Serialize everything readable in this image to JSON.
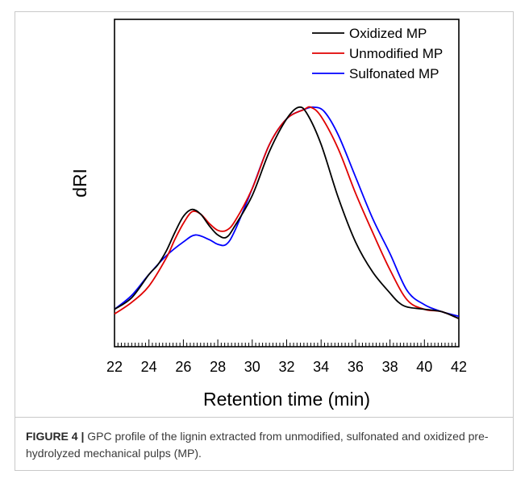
{
  "chart_data": {
    "type": "line",
    "title": "",
    "xlabel": "Retention time (min)",
    "ylabel": "dRI",
    "xlim": [
      22,
      42
    ],
    "xticks": [
      22,
      24,
      26,
      28,
      30,
      32,
      34,
      36,
      38,
      40,
      42
    ],
    "y_tick_labels_shown": false,
    "legend_position": "top-right",
    "series": [
      {
        "name": "Oxidized MP",
        "color": "#000000",
        "points": [
          [
            22,
            0.05
          ],
          [
            23,
            0.1
          ],
          [
            24,
            0.2
          ],
          [
            24.5,
            0.24
          ],
          [
            25,
            0.3
          ],
          [
            25.5,
            0.38
          ],
          [
            26,
            0.45
          ],
          [
            26.5,
            0.48
          ],
          [
            27,
            0.46
          ],
          [
            27.5,
            0.41
          ],
          [
            28,
            0.37
          ],
          [
            28.5,
            0.36
          ],
          [
            29,
            0.41
          ],
          [
            30,
            0.54
          ],
          [
            31,
            0.73
          ],
          [
            32,
            0.87
          ],
          [
            32.7,
            0.92
          ],
          [
            33.2,
            0.89
          ],
          [
            34,
            0.76
          ],
          [
            35,
            0.53
          ],
          [
            36,
            0.34
          ],
          [
            37,
            0.21
          ],
          [
            38,
            0.12
          ],
          [
            38.5,
            0.08
          ],
          [
            39,
            0.06
          ],
          [
            40,
            0.05
          ],
          [
            41,
            0.04
          ],
          [
            42,
            0.01
          ]
        ]
      },
      {
        "name": "Unmodified MP",
        "color": "#e00000",
        "points": [
          [
            22,
            0.03
          ],
          [
            23,
            0.08
          ],
          [
            24,
            0.15
          ],
          [
            25,
            0.27
          ],
          [
            25.5,
            0.35
          ],
          [
            26,
            0.42
          ],
          [
            26.5,
            0.47
          ],
          [
            27,
            0.46
          ],
          [
            27.5,
            0.42
          ],
          [
            28,
            0.39
          ],
          [
            28.5,
            0.39
          ],
          [
            29,
            0.43
          ],
          [
            30,
            0.57
          ],
          [
            31,
            0.76
          ],
          [
            32,
            0.87
          ],
          [
            33,
            0.91
          ],
          [
            33.4,
            0.92
          ],
          [
            34,
            0.88
          ],
          [
            35,
            0.74
          ],
          [
            36,
            0.55
          ],
          [
            37,
            0.38
          ],
          [
            38,
            0.22
          ],
          [
            39,
            0.09
          ],
          [
            40,
            0.05
          ],
          [
            41,
            0.04
          ],
          [
            42,
            0.01
          ]
        ]
      },
      {
        "name": "Sulfonated MP",
        "color": "#0000ff",
        "points": [
          [
            22,
            0.05
          ],
          [
            23,
            0.11
          ],
          [
            24,
            0.2
          ],
          [
            25,
            0.28
          ],
          [
            26,
            0.34
          ],
          [
            26.7,
            0.37
          ],
          [
            27.5,
            0.35
          ],
          [
            28,
            0.33
          ],
          [
            28.5,
            0.33
          ],
          [
            29,
            0.39
          ],
          [
            30,
            0.57
          ],
          [
            31,
            0.76
          ],
          [
            32,
            0.87
          ],
          [
            33,
            0.91
          ],
          [
            33.6,
            0.92
          ],
          [
            34.2,
            0.9
          ],
          [
            35,
            0.8
          ],
          [
            36,
            0.62
          ],
          [
            37,
            0.44
          ],
          [
            38,
            0.29
          ],
          [
            39,
            0.13
          ],
          [
            40,
            0.07
          ],
          [
            41,
            0.04
          ],
          [
            42,
            0.02
          ]
        ]
      }
    ]
  },
  "caption": {
    "label": "FIGURE 4 |",
    "text": " GPC profile of the lignin extracted from unmodified, sulfonated and oxidized pre-hydrolyzed mechanical pulps (MP)."
  }
}
